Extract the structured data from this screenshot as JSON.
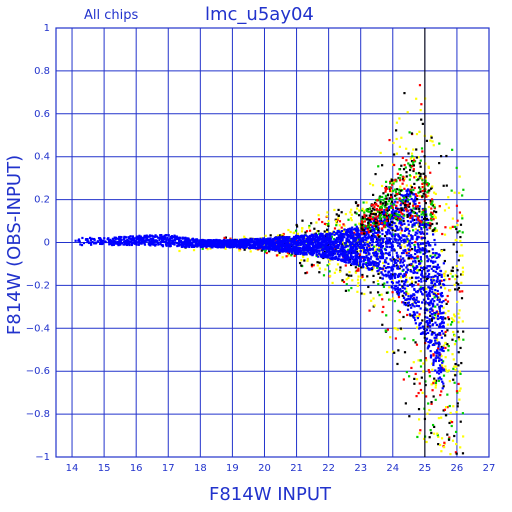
{
  "chart_data": {
    "type": "scatter",
    "title": "lmc_u5ay04",
    "subtitle": "All chips",
    "xlabel": "F814W INPUT",
    "ylabel": "F814W (OBS-INPUT)",
    "xlim": [
      13.5,
      27
    ],
    "ylim": [
      -1,
      1
    ],
    "xticks": [
      14,
      15,
      16,
      17,
      18,
      19,
      20,
      21,
      22,
      23,
      24,
      25,
      26,
      27
    ],
    "yticks": [
      -1,
      -0.8,
      -0.6,
      -0.4,
      -0.2,
      0,
      0.2,
      0.4,
      0.6,
      0.8,
      1
    ],
    "ytick_labels": [
      "−1",
      "−0.8",
      "−0.6",
      "−0.4",
      "−0.2",
      "0",
      "0.2",
      "0.4",
      "0.6",
      "0.8",
      "1"
    ],
    "grid": true,
    "vertical_line_x": 25,
    "colors": {
      "axis": "#2233cc",
      "grid": "#2233cc",
      "blue": "#0000ff",
      "yellow": "#ffff00",
      "black": "#000000",
      "red": "#ff0000",
      "green": "#00cc00"
    },
    "series_envelope": {
      "x": [
        14,
        15,
        16,
        17,
        18,
        19,
        20,
        21,
        22,
        23,
        23.5,
        24,
        24.5,
        25,
        25.5,
        26
      ],
      "upper": [
        0.03,
        0.03,
        0.04,
        0.05,
        0.02,
        0.02,
        0.03,
        0.05,
        0.07,
        0.12,
        0.18,
        0.28,
        0.38,
        0.3,
        0.05,
        0.0
      ],
      "lower": [
        -0.02,
        -0.02,
        -0.02,
        -0.03,
        -0.03,
        -0.03,
        -0.04,
        -0.07,
        -0.1,
        -0.15,
        -0.2,
        -0.3,
        -0.45,
        -0.6,
        -0.8,
        -0.9
      ]
    },
    "series": [
      {
        "name": "",
        "color": "blue"
      },
      {
        "name": "",
        "color": "yellow"
      },
      {
        "name": "",
        "color": "black"
      },
      {
        "name": "",
        "color": "red"
      },
      {
        "name": "",
        "color": "green"
      }
    ]
  }
}
